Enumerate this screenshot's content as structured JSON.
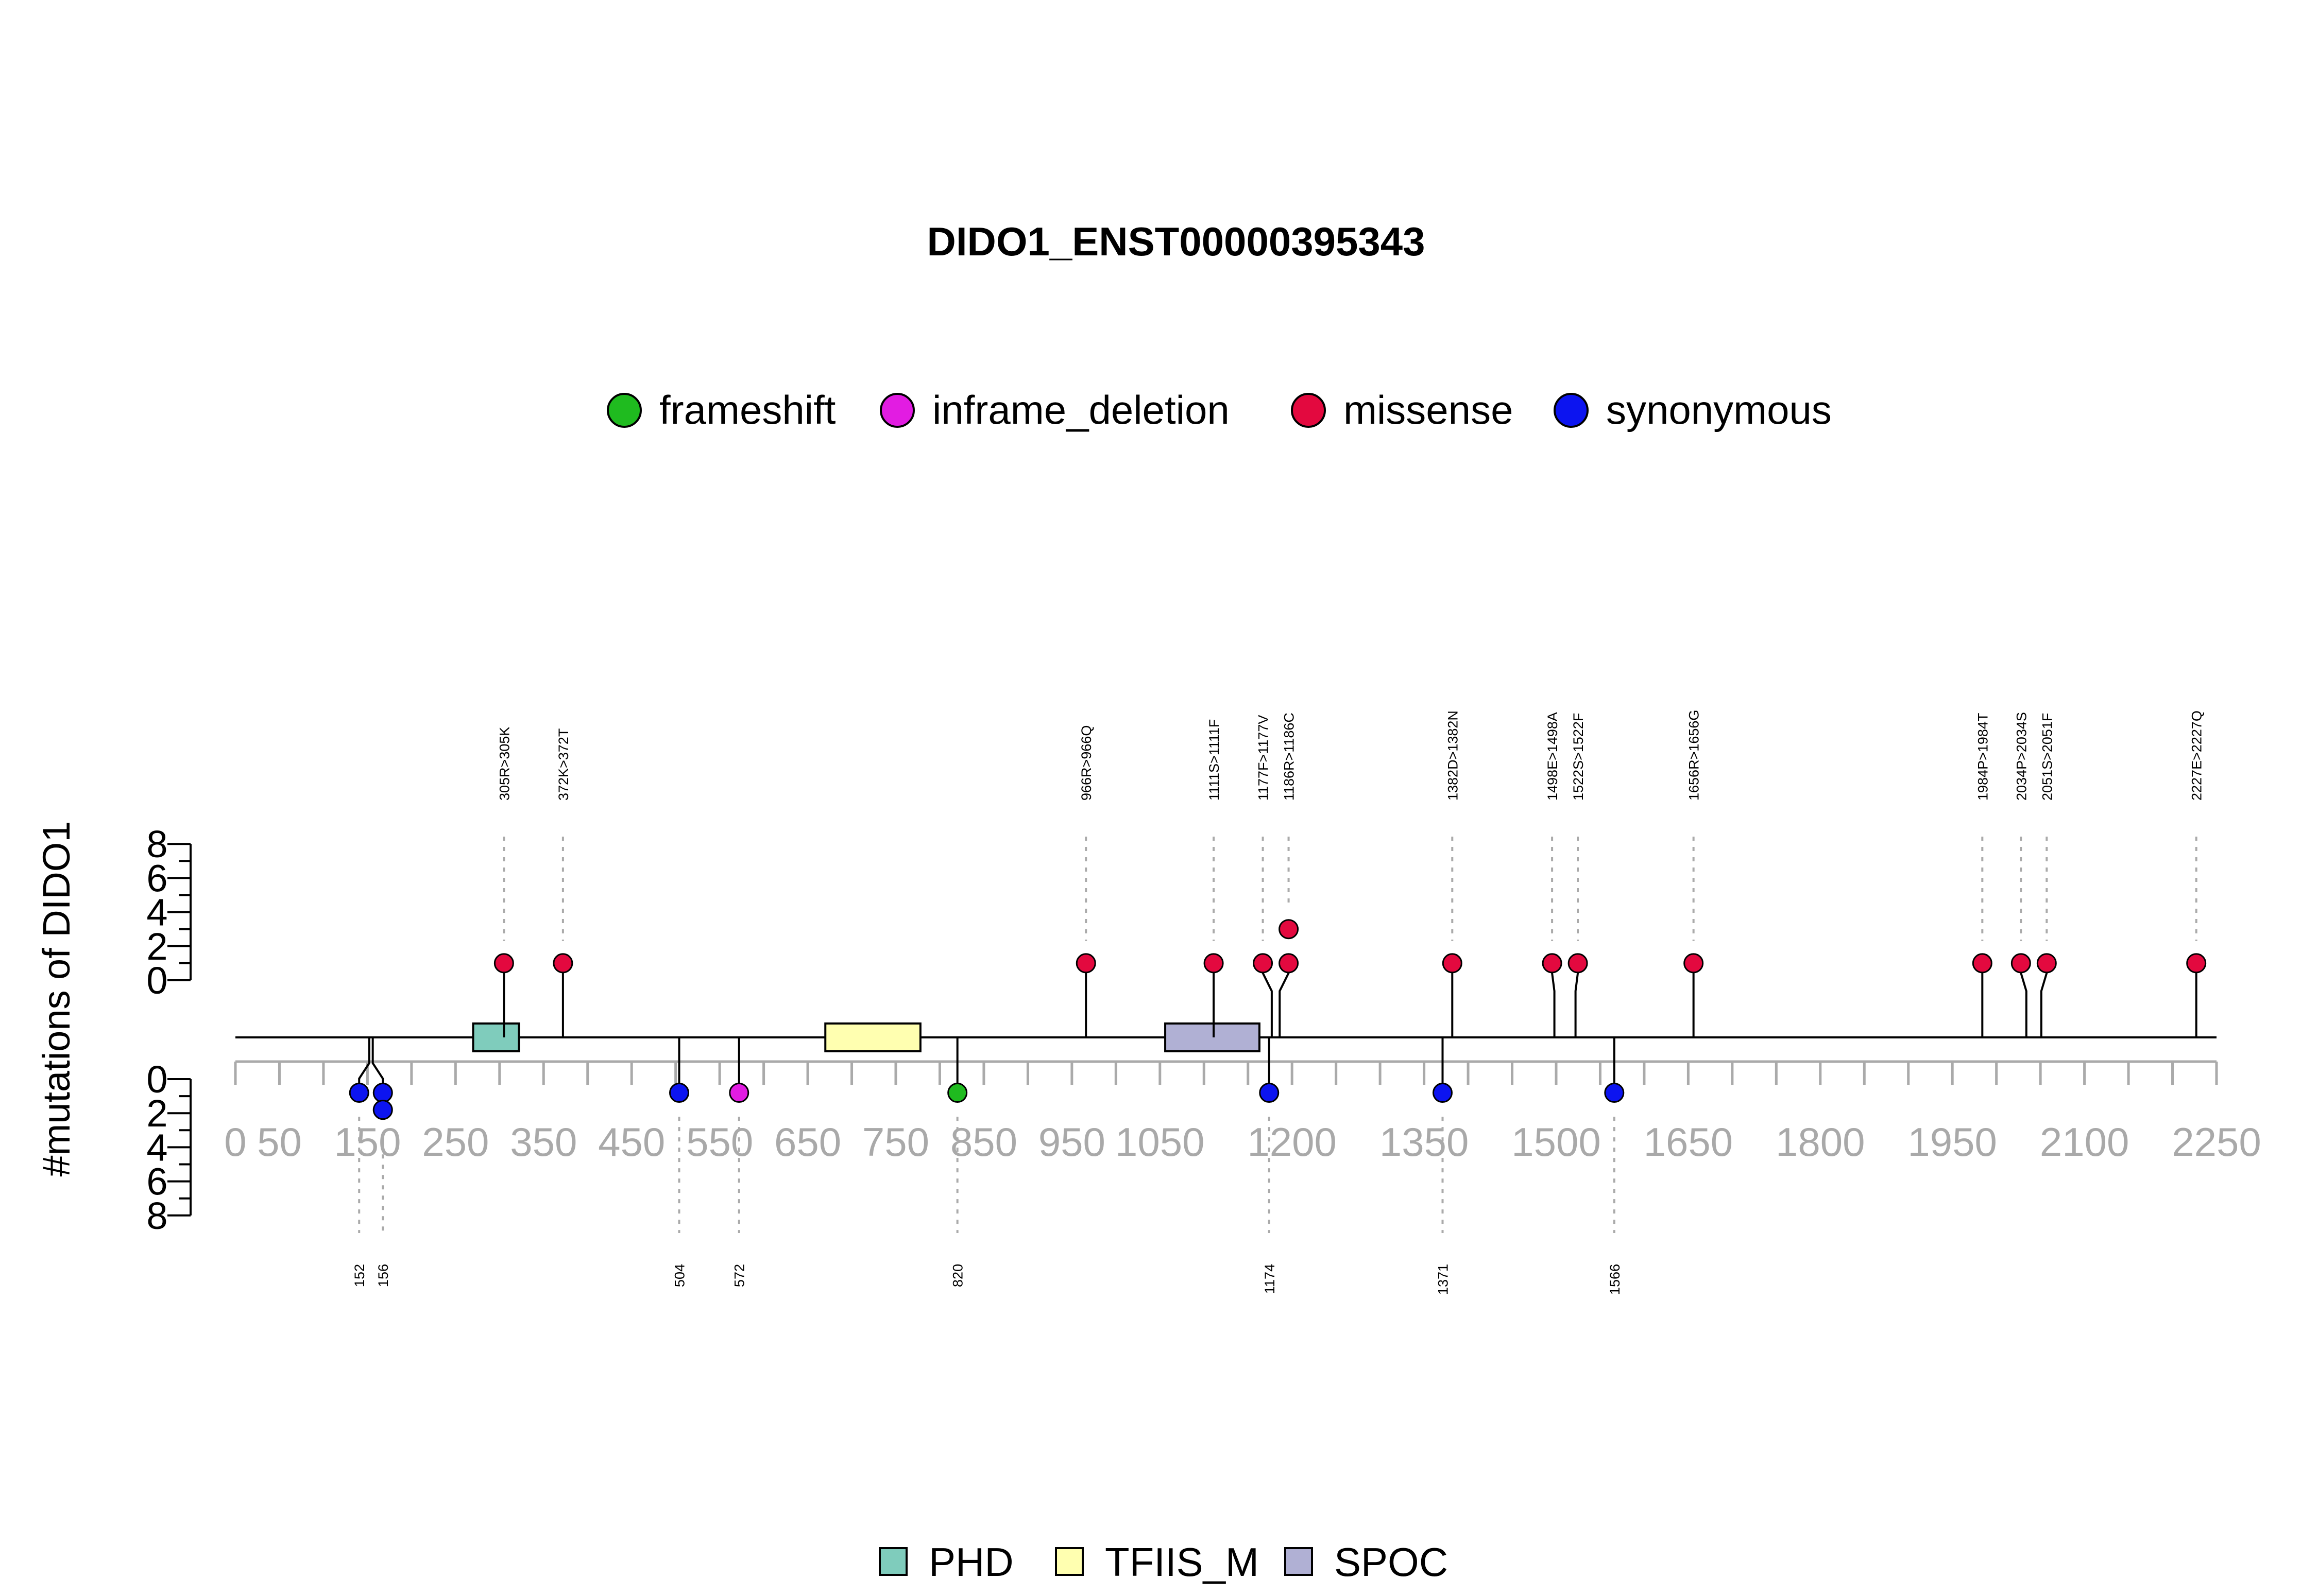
{
  "chart_data": {
    "type": "lollipop",
    "title": "DIDO1_ENST00000395343",
    "ylabel": "#mutations of DIDO1",
    "protein_length": 2250,
    "xlim": [
      0,
      2250
    ],
    "x_ticks": [
      0,
      50,
      150,
      250,
      350,
      450,
      550,
      650,
      750,
      850,
      950,
      1050,
      1200,
      1350,
      1500,
      1650,
      1800,
      1950,
      2100,
      2250
    ],
    "x_minor_ticks": [
      0,
      50,
      100,
      150,
      200,
      250,
      300,
      350,
      400,
      450,
      500,
      550,
      600,
      650,
      700,
      750,
      800,
      850,
      900,
      950,
      1000,
      1050,
      1100,
      1150,
      1200,
      1250,
      1300,
      1350,
      1400,
      1450,
      1500,
      1550,
      1600,
      1650,
      1700,
      1750,
      1800,
      1850,
      1900,
      1950,
      2000,
      2050,
      2100,
      2150,
      2200,
      2250
    ],
    "y_ticks": [
      0,
      2,
      4,
      6,
      8
    ],
    "ylim": [
      0,
      8
    ],
    "mutation_types": [
      {
        "name": "frameshift",
        "color": "#1fbb1f"
      },
      {
        "name": "inframe_deletion",
        "color": "#e21ce2"
      },
      {
        "name": "missense",
        "color": "#e3093f"
      },
      {
        "name": "synonymous",
        "color": "#0c14f0"
      }
    ],
    "domains": [
      {
        "name": "PHD",
        "start": 270,
        "end": 322,
        "color": "#7fccbc"
      },
      {
        "name": "TFIIS_M",
        "start": 670,
        "end": 778,
        "color": "#ffffb0"
      },
      {
        "name": "SPOC",
        "start": 1056,
        "end": 1163,
        "color": "#b0b0d4"
      }
    ],
    "top_mutations": [
      {
        "label": "305R>305K",
        "pos": 305,
        "count": 1,
        "type": "missense"
      },
      {
        "label": "372K>372T",
        "pos": 372,
        "count": 1,
        "type": "missense"
      },
      {
        "label": "966R>966Q",
        "pos": 966,
        "count": 1,
        "type": "missense"
      },
      {
        "label": "1111S>1111F",
        "pos": 1111,
        "count": 1,
        "type": "missense"
      },
      {
        "label": "1177F>1177V",
        "pos": 1177,
        "count": 1,
        "type": "missense"
      },
      {
        "label": "1186R>1186C",
        "pos": 1186,
        "count": 2,
        "type": "missense"
      },
      {
        "label": "1382D>1382N",
        "pos": 1382,
        "count": 1,
        "type": "missense"
      },
      {
        "label": "1498E>1498A",
        "pos": 1498,
        "count": 1,
        "type": "missense"
      },
      {
        "label": "1522S>1522F",
        "pos": 1522,
        "count": 1,
        "type": "missense"
      },
      {
        "label": "1656R>1656G",
        "pos": 1656,
        "count": 1,
        "type": "missense"
      },
      {
        "label": "1984P>1984T",
        "pos": 1984,
        "count": 1,
        "type": "missense"
      },
      {
        "label": "2034P>2034S",
        "pos": 2034,
        "count": 1,
        "type": "missense"
      },
      {
        "label": "2051S>2051F",
        "pos": 2051,
        "count": 1,
        "type": "missense"
      },
      {
        "label": "2227E>2227Q",
        "pos": 2227,
        "count": 1,
        "type": "missense"
      }
    ],
    "bottom_mutations": [
      {
        "label": "152",
        "pos": 152,
        "count": 1,
        "type": "synonymous"
      },
      {
        "label": "156",
        "pos": 156,
        "count": 2,
        "type": "synonymous"
      },
      {
        "label": "504",
        "pos": 504,
        "count": 1,
        "type": "synonymous"
      },
      {
        "label": "572",
        "pos": 572,
        "count": 1,
        "type": "inframe_deletion"
      },
      {
        "label": "820",
        "pos": 820,
        "count": 1,
        "type": "frameshift"
      },
      {
        "label": "1174",
        "pos": 1174,
        "count": 1,
        "type": "synonymous"
      },
      {
        "label": "1371",
        "pos": 1371,
        "count": 1,
        "type": "synonymous"
      },
      {
        "label": "1566",
        "pos": 1566,
        "count": 1,
        "type": "synonymous"
      }
    ]
  }
}
